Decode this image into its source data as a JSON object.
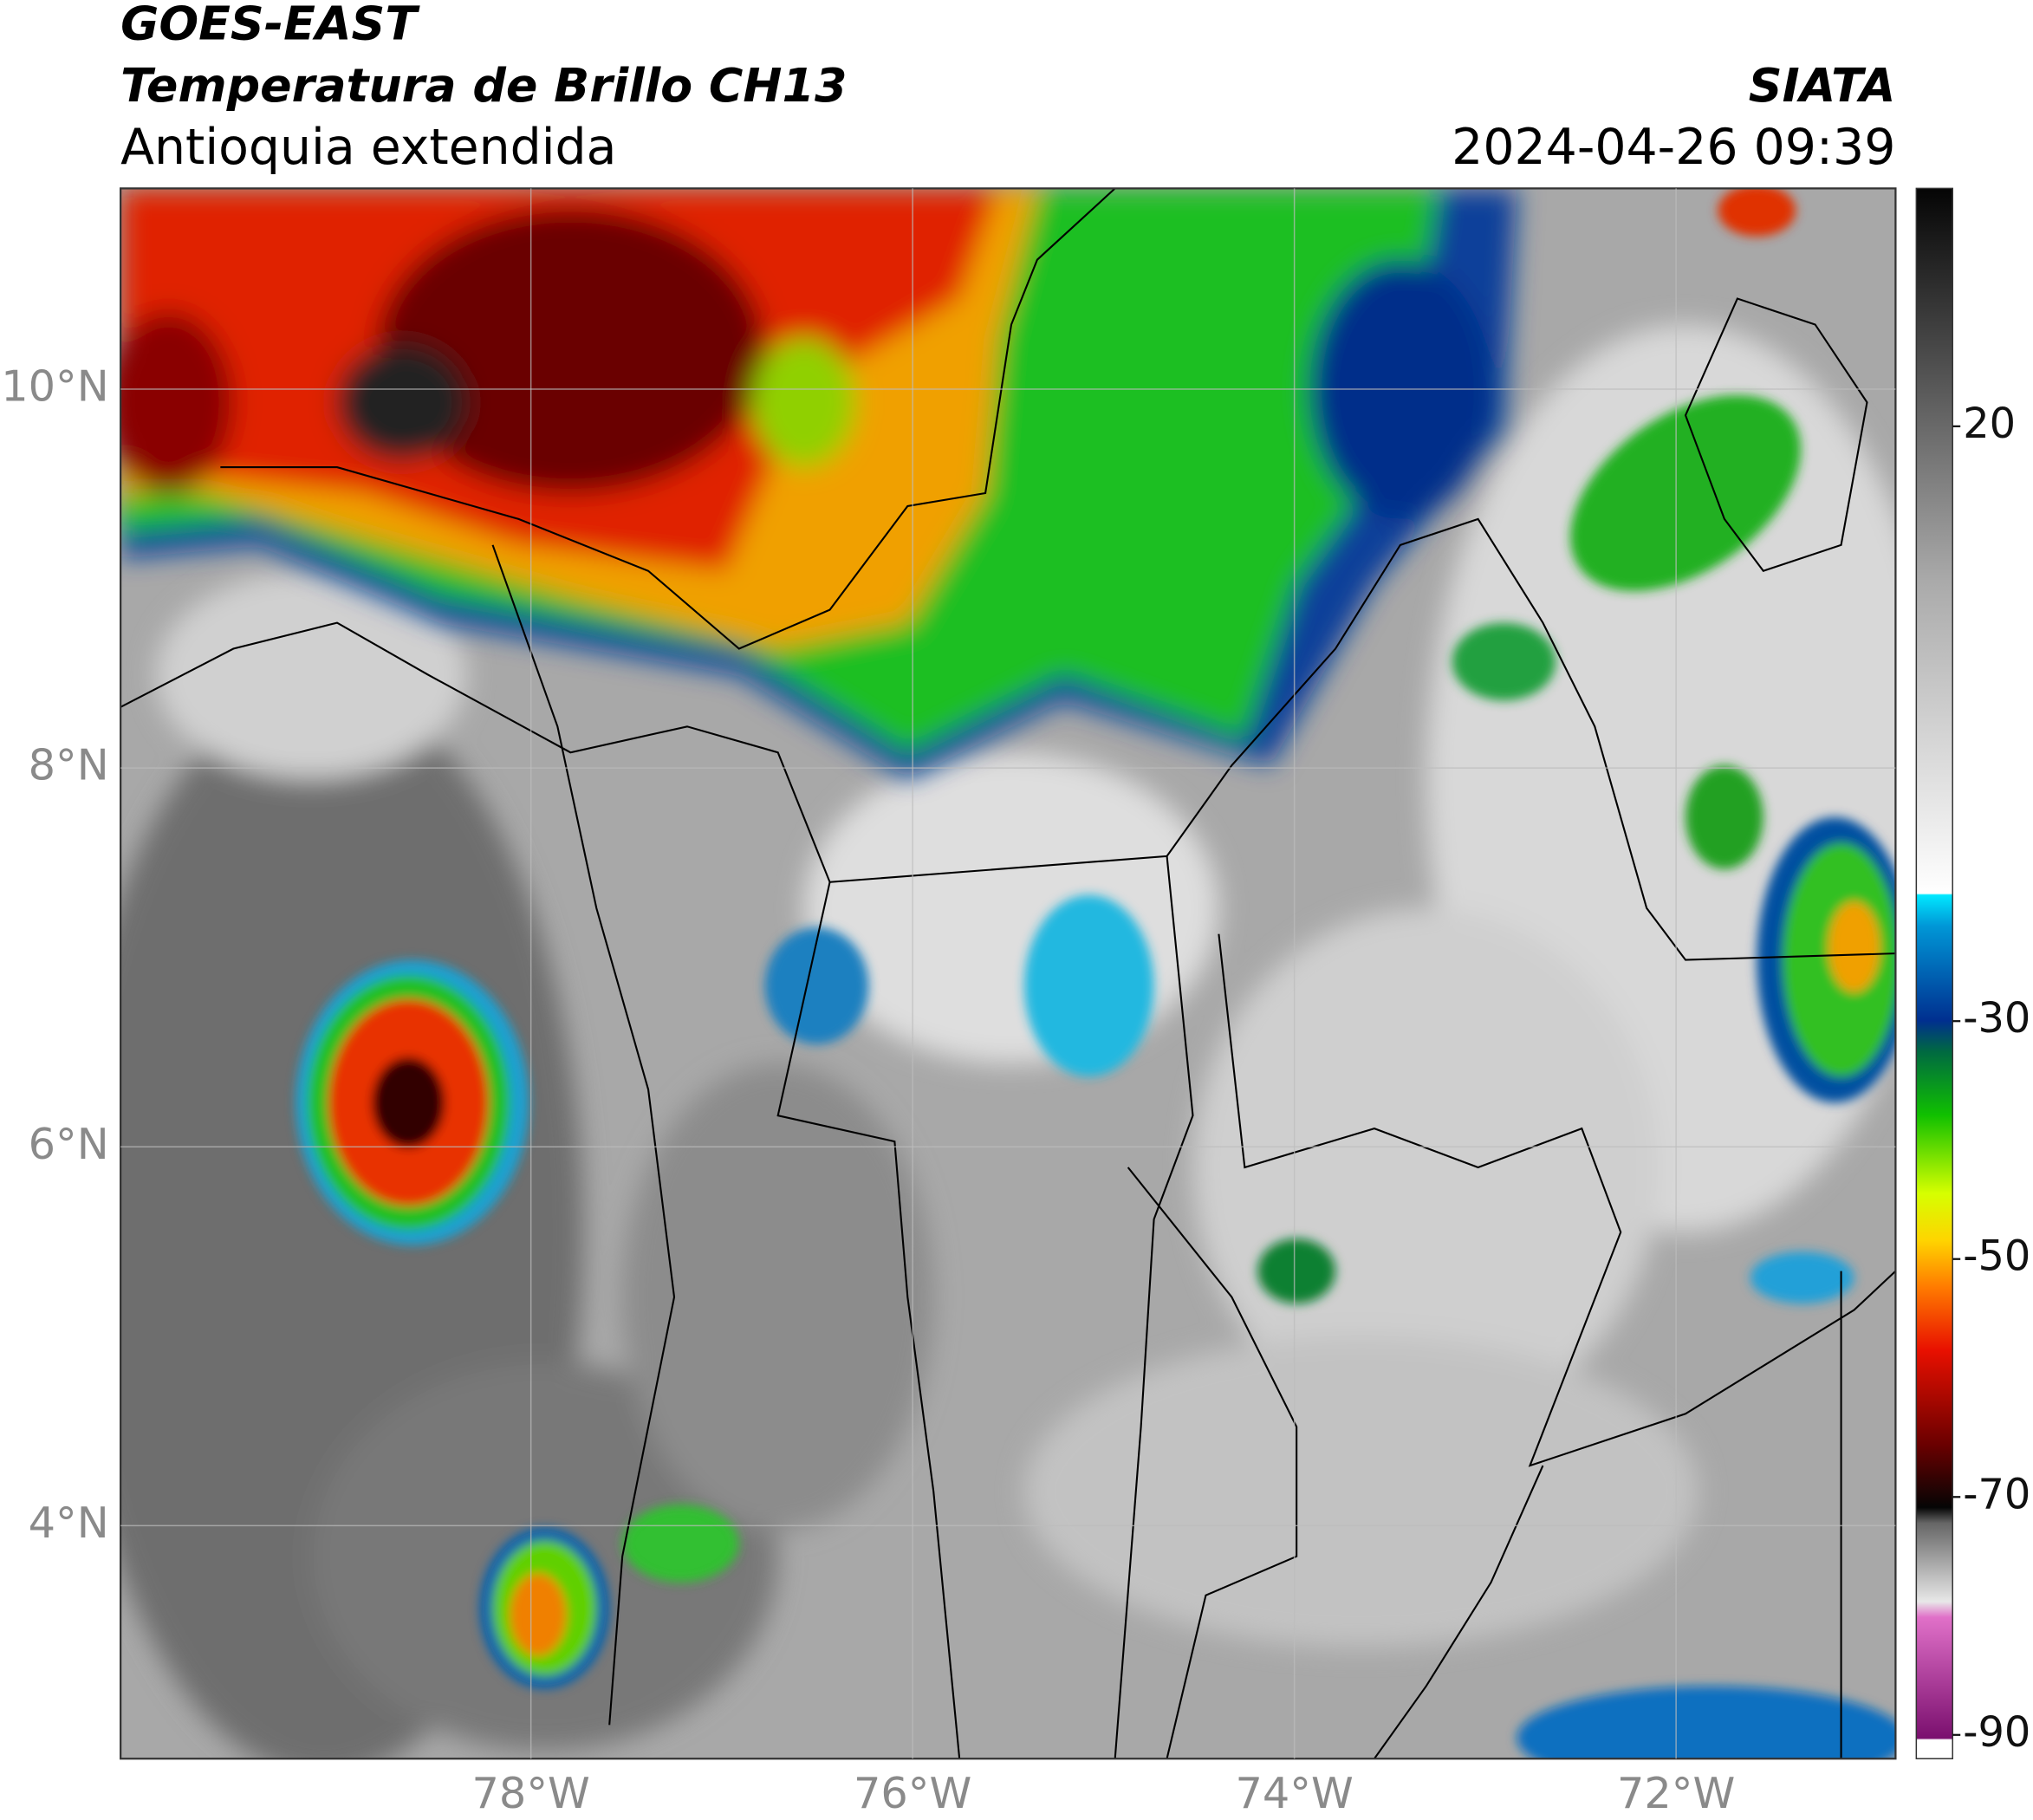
{
  "header": {
    "title": "GOES-EAST",
    "subtitle": "Temperatura de Brillo CH13",
    "region": "Antioquia extendida",
    "source": "SIATA",
    "datetime": "2024-04-26 09:39"
  },
  "map": {
    "lonlim": [
      -80.15,
      -70.85
    ],
    "latlim": [
      2.77,
      11.06
    ],
    "lonticks": [
      {
        "value": -78,
        "label": "78°W"
      },
      {
        "value": -76,
        "label": "76°W"
      },
      {
        "value": -74,
        "label": "74°W"
      },
      {
        "value": -72,
        "label": "72°W"
      }
    ],
    "latticks": [
      {
        "value": 10,
        "label": "10°N"
      },
      {
        "value": 8,
        "label": "8°N"
      },
      {
        "value": 6,
        "label": "6°N"
      },
      {
        "value": 4,
        "label": "4°N"
      }
    ],
    "grid": true
  },
  "colorbar": {
    "lim": [
      -92,
      40
    ],
    "ticks": [
      20,
      -30,
      -50,
      -70,
      -90
    ]
  }
}
